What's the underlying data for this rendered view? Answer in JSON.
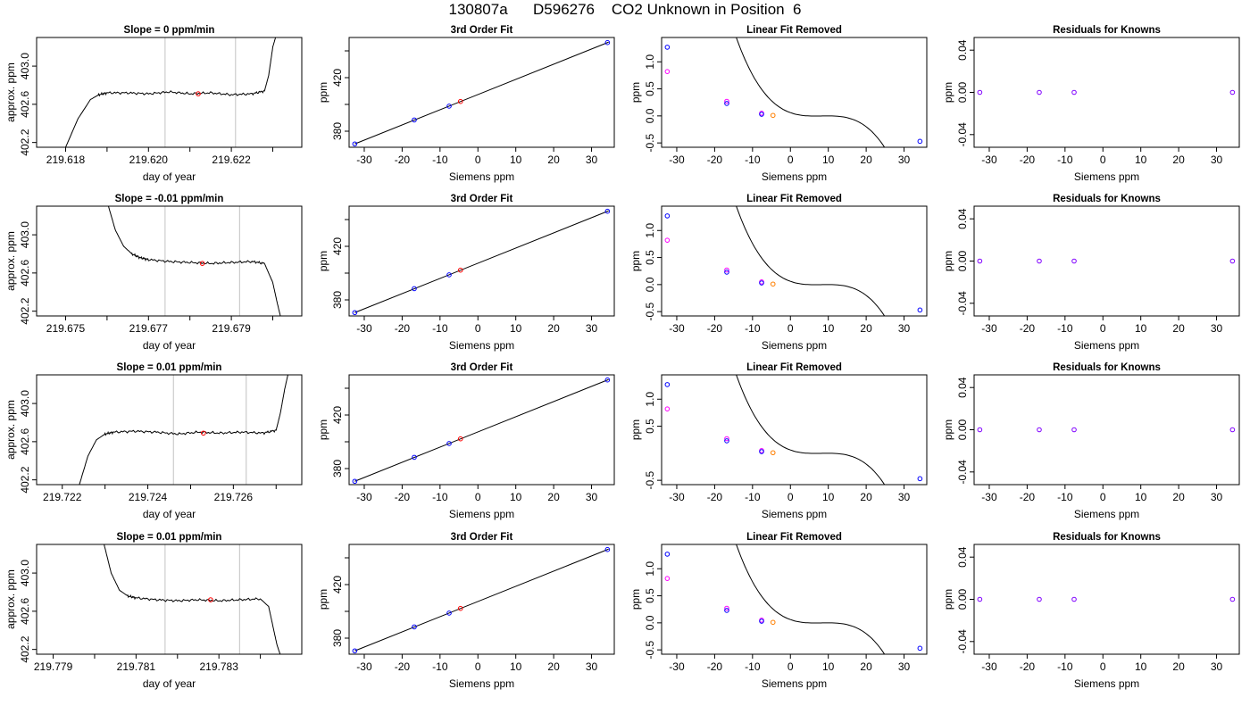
{
  "title": "130807a      D596276    CO2 Unknown in Position  6",
  "colors": {
    "axis": "#000000",
    "trace": "#000000",
    "gridline": "#cccccc",
    "known_point": "#0000ff",
    "unknown_point": "#ff0000",
    "linear_removed_point": "#ff00ff",
    "residual_point": "#8000ff",
    "unknown_removed_point": "#ff7f00"
  },
  "chart_data": [
    {
      "type": "line",
      "title": "Slope =  0  ppm/min",
      "xlabel": "day of year",
      "ylabel": "approx. ppm",
      "xlim": [
        219.6173,
        219.6237
      ],
      "ylim": [
        402.15,
        403.3
      ],
      "xticks": [
        "219.618",
        "219.620",
        "219.622"
      ],
      "xtick_values": [
        219.618,
        219.62,
        219.622
      ],
      "xminor_ticks": [
        219.619,
        219.621,
        219.623
      ],
      "yticks": [
        "402.2",
        "402.6",
        "403.0"
      ],
      "ytick_values": [
        402.2,
        402.6,
        403.0
      ],
      "vlines": [
        219.6204,
        219.6221
      ],
      "x": [
        219.618,
        219.6183,
        219.6186,
        219.6188,
        219.619,
        219.6195,
        219.62,
        219.6205,
        219.621,
        219.6215,
        219.622,
        219.6225,
        219.6228,
        219.6229,
        219.623,
        219.6231
      ],
      "y": [
        402.15,
        402.45,
        402.65,
        402.7,
        402.72,
        402.72,
        402.71,
        402.73,
        402.71,
        402.72,
        402.7,
        402.71,
        402.74,
        402.9,
        403.2,
        403.35
      ],
      "unknown_points": [
        {
          "x": 219.6212,
          "y": 402.71
        }
      ]
    },
    {
      "type": "line",
      "title": "Slope =  -0.01  ppm/min",
      "xlabel": "day of year",
      "ylabel": "approx. ppm",
      "xlim": [
        219.6743,
        219.6807
      ],
      "ylim": [
        402.15,
        403.3
      ],
      "xticks": [
        "219.675",
        "219.677",
        "219.679"
      ],
      "xtick_values": [
        219.675,
        219.677,
        219.679
      ],
      "xminor_ticks": [
        219.676,
        219.678,
        219.68
      ],
      "yticks": [
        "402.2",
        "402.6",
        "403.0"
      ],
      "ytick_values": [
        402.2,
        402.6,
        403.0
      ],
      "vlines": [
        219.6774,
        219.6792
      ],
      "x": [
        219.676,
        219.6762,
        219.6764,
        219.6766,
        219.6768,
        219.677,
        219.6775,
        219.678,
        219.6785,
        219.679,
        219.6795,
        219.6798,
        219.68,
        219.6801,
        219.6802
      ],
      "y": [
        403.35,
        403.05,
        402.88,
        402.8,
        402.76,
        402.74,
        402.72,
        402.71,
        402.7,
        402.71,
        402.72,
        402.7,
        402.5,
        402.3,
        402.12
      ],
      "unknown_points": [
        {
          "x": 219.6783,
          "y": 402.7
        }
      ]
    },
    {
      "type": "line",
      "title": "Slope =  0.01  ppm/min",
      "xlabel": "day of year",
      "ylabel": "approx. ppm",
      "xlim": [
        219.7214,
        219.7276
      ],
      "ylim": [
        402.15,
        403.3
      ],
      "xticks": [
        "219.722",
        "219.724",
        "219.726"
      ],
      "xtick_values": [
        219.722,
        219.724,
        219.726
      ],
      "xminor_ticks": [
        219.723,
        219.725,
        219.727
      ],
      "yticks": [
        "402.2",
        "402.6",
        "403.0"
      ],
      "ytick_values": [
        402.2,
        402.6,
        403.0
      ],
      "vlines": [
        219.7246,
        219.7263
      ],
      "x": [
        219.7224,
        219.7226,
        219.7228,
        219.723,
        219.7232,
        219.7237,
        219.7242,
        219.7247,
        219.7252,
        219.7257,
        219.7262,
        219.7267,
        219.727,
        219.7271,
        219.7272,
        219.7273
      ],
      "y": [
        402.15,
        402.45,
        402.62,
        402.68,
        402.7,
        402.71,
        402.7,
        402.68,
        402.7,
        402.69,
        402.7,
        402.69,
        402.72,
        402.9,
        403.15,
        403.35
      ],
      "unknown_points": [
        {
          "x": 219.7253,
          "y": 402.69
        }
      ]
    },
    {
      "type": "line",
      "title": "Slope =  0.01  ppm/min",
      "xlabel": "day of year",
      "ylabel": "approx. ppm",
      "xlim": [
        219.7786,
        219.785
      ],
      "ylim": [
        402.15,
        403.3
      ],
      "xticks": [
        "219.779",
        "219.781",
        "219.783"
      ],
      "xtick_values": [
        219.779,
        219.781,
        219.783
      ],
      "xminor_ticks": [
        219.78,
        219.782,
        219.784
      ],
      "yticks": [
        "402.2",
        "402.6",
        "403.0"
      ],
      "ytick_values": [
        402.2,
        402.6,
        403.0
      ],
      "vlines": [
        219.7817,
        219.7835
      ],
      "x": [
        219.7802,
        219.7804,
        219.7806,
        219.7808,
        219.781,
        219.7815,
        219.782,
        219.7825,
        219.783,
        219.7835,
        219.784,
        219.7842,
        219.7843,
        219.7844,
        219.7845
      ],
      "y": [
        403.35,
        403.0,
        402.82,
        402.76,
        402.74,
        402.72,
        402.71,
        402.72,
        402.71,
        402.72,
        402.73,
        402.65,
        402.45,
        402.25,
        402.12
      ],
      "unknown_points": [
        {
          "x": 219.7828,
          "y": 402.72
        }
      ]
    },
    {
      "type": "scatter",
      "title": "3rd Order Fit",
      "xlabel": "Siemens ppm",
      "ylabel": "ppm",
      "xlim": [
        -34,
        36
      ],
      "ylim": [
        368,
        450
      ],
      "xticks": [
        "-30",
        "-20",
        "-10",
        "0",
        "10",
        "20",
        "30"
      ],
      "xtick_values": [
        -30,
        -20,
        -10,
        0,
        10,
        20,
        30
      ],
      "yticks": [
        "380",
        "420"
      ],
      "ytick_values": [
        380,
        420
      ],
      "yminor_ticks": [
        400,
        440
      ],
      "fit_line": {
        "x": [
          -32.5,
          34.5
        ],
        "y": [
          370.5,
          446.5
        ]
      },
      "knowns": [
        {
          "x": -32.5,
          "y": 370.5
        },
        {
          "x": -16.8,
          "y": 388.4
        },
        {
          "x": -7.6,
          "y": 398.7
        },
        {
          "x": 34.2,
          "y": 446.2
        }
      ],
      "unknowns": [
        {
          "x": -4.6,
          "y": 402.2
        }
      ]
    },
    {
      "type": "scatter",
      "title": "3rd Order Fit",
      "xlabel": "Siemens ppm",
      "ylabel": "ppm",
      "xlim": [
        -34,
        36
      ],
      "ylim": [
        368,
        450
      ],
      "xticks": [
        "-30",
        "-20",
        "-10",
        "0",
        "10",
        "20",
        "30"
      ],
      "xtick_values": [
        -30,
        -20,
        -10,
        0,
        10,
        20,
        30
      ],
      "yticks": [
        "380",
        "420"
      ],
      "ytick_values": [
        380,
        420
      ],
      "yminor_ticks": [
        400,
        440
      ],
      "fit_line": {
        "x": [
          -32.5,
          34.5
        ],
        "y": [
          370.5,
          446.5
        ]
      },
      "knowns": [
        {
          "x": -32.5,
          "y": 370.5
        },
        {
          "x": -16.8,
          "y": 388.4
        },
        {
          "x": -7.6,
          "y": 398.7
        },
        {
          "x": 34.2,
          "y": 446.2
        }
      ],
      "unknowns": [
        {
          "x": -4.6,
          "y": 402.2
        }
      ]
    },
    {
      "type": "scatter",
      "title": "3rd Order Fit",
      "xlabel": "Siemens ppm",
      "ylabel": "ppm",
      "xlim": [
        -34,
        36
      ],
      "ylim": [
        368,
        450
      ],
      "xticks": [
        "-30",
        "-20",
        "-10",
        "0",
        "10",
        "20",
        "30"
      ],
      "xtick_values": [
        -30,
        -20,
        -10,
        0,
        10,
        20,
        30
      ],
      "yticks": [
        "380",
        "420"
      ],
      "ytick_values": [
        380,
        420
      ],
      "yminor_ticks": [
        400,
        440
      ],
      "fit_line": {
        "x": [
          -32.5,
          34.5
        ],
        "y": [
          370.5,
          446.5
        ]
      },
      "knowns": [
        {
          "x": -32.5,
          "y": 370.5
        },
        {
          "x": -16.8,
          "y": 388.4
        },
        {
          "x": -7.6,
          "y": 398.7
        },
        {
          "x": 34.2,
          "y": 446.2
        }
      ],
      "unknowns": [
        {
          "x": -4.6,
          "y": 402.2
        }
      ]
    },
    {
      "type": "scatter",
      "title": "3rd Order Fit",
      "xlabel": "Siemens ppm",
      "ylabel": "ppm",
      "xlim": [
        -34,
        36
      ],
      "ylim": [
        368,
        450
      ],
      "xticks": [
        "-30",
        "-20",
        "-10",
        "0",
        "10",
        "20",
        "30"
      ],
      "xtick_values": [
        -30,
        -20,
        -10,
        0,
        10,
        20,
        30
      ],
      "yticks": [
        "380",
        "420"
      ],
      "ytick_values": [
        380,
        420
      ],
      "yminor_ticks": [
        400,
        440
      ],
      "fit_line": {
        "x": [
          -32.5,
          34.5
        ],
        "y": [
          370.5,
          446.5
        ]
      },
      "knowns": [
        {
          "x": -32.5,
          "y": 370.5
        },
        {
          "x": -16.8,
          "y": 388.4
        },
        {
          "x": -7.6,
          "y": 398.7
        },
        {
          "x": 34.2,
          "y": 446.2
        }
      ],
      "unknowns": [
        {
          "x": -4.6,
          "y": 402.2
        }
      ]
    },
    {
      "type": "scatter",
      "title": "Linear Fit Removed",
      "xlabel": "Siemens ppm",
      "ylabel": "ppm",
      "xlim": [
        -34,
        36
      ],
      "ylim": [
        -0.58,
        1.45
      ],
      "xticks": [
        "-30",
        "-20",
        "-10",
        "0",
        "10",
        "20",
        "30"
      ],
      "xtick_values": [
        -30,
        -20,
        -10,
        0,
        10,
        20,
        30
      ],
      "yticks": [
        "-0.5",
        "0.0",
        "0.5",
        "1.0"
      ],
      "ytick_values": [
        -0.5,
        0.0,
        0.5,
        1.0
      ],
      "cubic": [
        0.06,
        -0.025,
        0.0032,
        -0.00013
      ],
      "cubic_range": [
        -33,
        34.8
      ],
      "knowns": [
        {
          "x": -32.5,
          "y": 1.27
        },
        {
          "x": -16.8,
          "y": 0.23
        },
        {
          "x": -7.6,
          "y": 0.03
        },
        {
          "x": 34.2,
          "y": -0.47
        }
      ],
      "linear_removed": [
        {
          "x": -32.5,
          "y": 0.82
        },
        {
          "x": -16.8,
          "y": 0.27
        },
        {
          "x": -7.6,
          "y": 0.05
        }
      ],
      "unknowns": [
        {
          "x": -4.6,
          "y": 0.01
        }
      ]
    },
    {
      "type": "scatter",
      "title": "Linear Fit Removed",
      "xlabel": "Siemens ppm",
      "ylabel": "ppm",
      "xlim": [
        -34,
        36
      ],
      "ylim": [
        -0.58,
        1.45
      ],
      "xticks": [
        "-30",
        "-20",
        "-10",
        "0",
        "10",
        "20",
        "30"
      ],
      "xtick_values": [
        -30,
        -20,
        -10,
        0,
        10,
        20,
        30
      ],
      "yticks": [
        "-0.5",
        "0.0",
        "0.5",
        "1.0"
      ],
      "ytick_values": [
        -0.5,
        0.0,
        0.5,
        1.0
      ],
      "cubic": [
        0.06,
        -0.025,
        0.0032,
        -0.00013
      ],
      "cubic_range": [
        -33,
        34.8
      ],
      "knowns": [
        {
          "x": -32.5,
          "y": 1.27
        },
        {
          "x": -16.8,
          "y": 0.23
        },
        {
          "x": -7.6,
          "y": 0.03
        },
        {
          "x": 34.2,
          "y": -0.47
        }
      ],
      "linear_removed": [
        {
          "x": -32.5,
          "y": 0.82
        },
        {
          "x": -16.8,
          "y": 0.27
        },
        {
          "x": -7.6,
          "y": 0.05
        }
      ],
      "unknowns": [
        {
          "x": -4.6,
          "y": 0.01
        }
      ]
    },
    {
      "type": "scatter",
      "title": "Linear Fit Removed",
      "xlabel": "Siemens ppm",
      "ylabel": "ppm",
      "xlim": [
        -34,
        36
      ],
      "ylim": [
        -0.58,
        1.45
      ],
      "xticks": [
        "-30",
        "-20",
        "-10",
        "0",
        "10",
        "20",
        "30"
      ],
      "xtick_values": [
        -30,
        -20,
        -10,
        0,
        10,
        20,
        30
      ],
      "yticks": [
        "-0.5",
        "0.5",
        "1.0"
      ],
      "ytick_values": [
        -0.5,
        0.5,
        1.0
      ],
      "cubic": [
        0.06,
        -0.025,
        0.0032,
        -0.00013
      ],
      "cubic_range": [
        -33,
        34.8
      ],
      "knowns": [
        {
          "x": -32.5,
          "y": 1.27
        },
        {
          "x": -16.8,
          "y": 0.23
        },
        {
          "x": -7.6,
          "y": 0.03
        },
        {
          "x": 34.2,
          "y": -0.47
        }
      ],
      "linear_removed": [
        {
          "x": -32.5,
          "y": 0.82
        },
        {
          "x": -16.8,
          "y": 0.27
        },
        {
          "x": -7.6,
          "y": 0.05
        }
      ],
      "unknowns": [
        {
          "x": -4.6,
          "y": 0.01
        }
      ]
    },
    {
      "type": "scatter",
      "title": "Linear Fit Removed",
      "xlabel": "Siemens ppm",
      "ylabel": "ppm",
      "xlim": [
        -34,
        36
      ],
      "ylim": [
        -0.58,
        1.45
      ],
      "xticks": [
        "-30",
        "-20",
        "-10",
        "0",
        "10",
        "20",
        "30"
      ],
      "xtick_values": [
        -30,
        -20,
        -10,
        0,
        10,
        20,
        30
      ],
      "yticks": [
        "-0.5",
        "0.0",
        "0.5",
        "1.0"
      ],
      "ytick_values": [
        -0.5,
        0.0,
        0.5,
        1.0
      ],
      "cubic": [
        0.06,
        -0.025,
        0.0032,
        -0.00013
      ],
      "cubic_range": [
        -33,
        34.8
      ],
      "knowns": [
        {
          "x": -32.5,
          "y": 1.27
        },
        {
          "x": -16.8,
          "y": 0.23
        },
        {
          "x": -7.6,
          "y": 0.03
        },
        {
          "x": 34.2,
          "y": -0.47
        }
      ],
      "linear_removed": [
        {
          "x": -32.5,
          "y": 0.82
        },
        {
          "x": -16.8,
          "y": 0.27
        },
        {
          "x": -7.6,
          "y": 0.05
        }
      ],
      "unknowns": [
        {
          "x": -4.6,
          "y": 0.01
        }
      ]
    },
    {
      "type": "scatter",
      "title": "Residuals for Knowns",
      "xlabel": "Siemens ppm",
      "ylabel": "ppm",
      "xlim": [
        -34,
        36
      ],
      "ylim": [
        -0.052,
        0.052
      ],
      "xticks": [
        "-30",
        "-20",
        "-10",
        "0",
        "10",
        "20",
        "30"
      ],
      "xtick_values": [
        -30,
        -20,
        -10,
        0,
        10,
        20,
        30
      ],
      "yticks": [
        "-0.04",
        "0.00",
        "0.04"
      ],
      "ytick_values": [
        -0.04,
        0.0,
        0.04
      ],
      "residuals": [
        {
          "x": -32.5,
          "y": 0
        },
        {
          "x": -16.8,
          "y": 0
        },
        {
          "x": -7.6,
          "y": 0
        },
        {
          "x": 34.2,
          "y": 0
        }
      ]
    },
    {
      "type": "scatter",
      "title": "Residuals for Knowns",
      "xlabel": "Siemens ppm",
      "ylabel": "ppm",
      "xlim": [
        -34,
        36
      ],
      "ylim": [
        -0.052,
        0.052
      ],
      "xticks": [
        "-30",
        "-20",
        "-10",
        "0",
        "10",
        "20",
        "30"
      ],
      "xtick_values": [
        -30,
        -20,
        -10,
        0,
        10,
        20,
        30
      ],
      "yticks": [
        "-0.04",
        "0.00",
        "0.04"
      ],
      "ytick_values": [
        -0.04,
        0.0,
        0.04
      ],
      "residuals": [
        {
          "x": -32.5,
          "y": 0
        },
        {
          "x": -16.8,
          "y": 0
        },
        {
          "x": -7.6,
          "y": 0
        },
        {
          "x": 34.2,
          "y": 0
        }
      ]
    },
    {
      "type": "scatter",
      "title": "Residuals for Knowns",
      "xlabel": "Siemens ppm",
      "ylabel": "ppm",
      "xlim": [
        -34,
        36
      ],
      "ylim": [
        -0.052,
        0.052
      ],
      "xticks": [
        "-30",
        "-20",
        "-10",
        "0",
        "10",
        "20",
        "30"
      ],
      "xtick_values": [
        -30,
        -20,
        -10,
        0,
        10,
        20,
        30
      ],
      "yticks": [
        "-0.04",
        "0.00",
        "0.04"
      ],
      "ytick_values": [
        -0.04,
        0.0,
        0.04
      ],
      "residuals": [
        {
          "x": -32.5,
          "y": 0
        },
        {
          "x": -16.8,
          "y": 0
        },
        {
          "x": -7.6,
          "y": 0
        },
        {
          "x": 34.2,
          "y": 0
        }
      ]
    },
    {
      "type": "scatter",
      "title": "Residuals for Knowns",
      "xlabel": "Siemens ppm",
      "ylabel": "ppm",
      "xlim": [
        -34,
        36
      ],
      "ylim": [
        -0.052,
        0.052
      ],
      "xticks": [
        "-30",
        "-20",
        "-10",
        "0",
        "10",
        "20",
        "30"
      ],
      "xtick_values": [
        -30,
        -20,
        -10,
        0,
        10,
        20,
        30
      ],
      "yticks": [
        "-0.04",
        "0.00",
        "0.04"
      ],
      "ytick_values": [
        -0.04,
        0.0,
        0.04
      ],
      "residuals": [
        {
          "x": -32.5,
          "y": 0
        },
        {
          "x": -16.8,
          "y": 0
        },
        {
          "x": -7.6,
          "y": 0
        },
        {
          "x": 34.2,
          "y": 0
        }
      ]
    }
  ]
}
